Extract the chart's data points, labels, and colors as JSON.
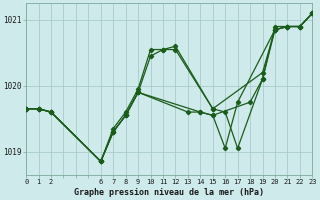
{
  "background_color": "#ceeaea",
  "grid_color": "#aacccc",
  "line_color": "#1a5c1a",
  "title": "Graphe pression niveau de la mer (hPa)",
  "ylabel_ticks": [
    1019,
    1020,
    1021
  ],
  "xtick_labels": [
    "0",
    "1",
    "2",
    "",
    "",
    "",
    "6",
    "7",
    "8",
    "9",
    "10",
    "11",
    "12",
    "13",
    "14",
    "15",
    "16",
    "17",
    "18",
    "19",
    "20",
    "21",
    "22",
    "23"
  ],
  "xlim": [
    0,
    23
  ],
  "ylim": [
    1018.65,
    1021.25
  ],
  "series": [
    {
      "x": [
        0,
        1,
        2,
        6,
        7,
        8,
        9,
        10,
        11,
        12,
        15,
        16,
        17,
        19,
        20,
        21,
        22,
        23
      ],
      "y": [
        1019.65,
        1019.65,
        1019.6,
        1018.85,
        1019.35,
        1019.6,
        1019.95,
        1020.55,
        1020.55,
        1020.6,
        1019.65,
        1019.6,
        1019.05,
        1020.1,
        1020.9,
        1020.9,
        1020.9,
        1021.1
      ]
    },
    {
      "x": [
        0,
        1,
        2,
        6,
        7,
        8,
        9,
        10,
        11,
        12,
        15,
        19,
        20,
        21,
        22,
        23
      ],
      "y": [
        1019.65,
        1019.65,
        1019.6,
        1018.85,
        1019.3,
        1019.55,
        1019.9,
        1020.45,
        1020.55,
        1020.55,
        1019.65,
        1020.2,
        1020.85,
        1020.9,
        1020.9,
        1021.1
      ]
    },
    {
      "x": [
        0,
        1,
        2,
        6,
        7,
        8,
        9,
        13,
        14,
        15,
        16,
        17,
        20,
        21,
        22,
        23
      ],
      "y": [
        1019.65,
        1019.65,
        1019.6,
        1018.85,
        1019.3,
        1019.55,
        1019.9,
        1019.6,
        1019.6,
        1019.55,
        1019.05,
        1019.75,
        1020.85,
        1020.9,
        1020.9,
        1021.1
      ]
    },
    {
      "x": [
        0,
        1,
        2,
        6,
        7,
        8,
        9,
        14,
        15,
        18,
        19,
        20,
        21,
        22,
        23
      ],
      "y": [
        1019.65,
        1019.65,
        1019.6,
        1018.85,
        1019.3,
        1019.55,
        1019.9,
        1019.6,
        1019.55,
        1019.75,
        1020.1,
        1020.85,
        1020.9,
        1020.9,
        1021.1
      ]
    }
  ]
}
